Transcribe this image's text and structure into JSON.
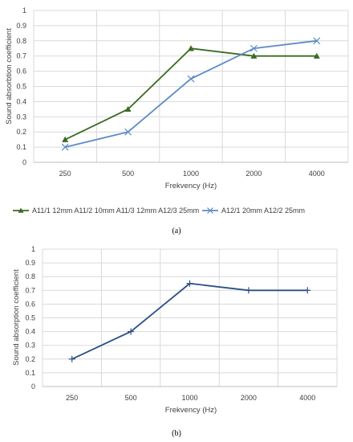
{
  "chart_data": [
    {
      "type": "line",
      "categories": [
        "250",
        "500",
        "1000",
        "2000",
        "4000"
      ],
      "series": [
        {
          "name": "A11/1 12mm A11/2 10mm A11/3 12mm A12/3 25mm",
          "values": [
            0.15,
            0.35,
            0.75,
            0.7,
            0.7
          ],
          "color": "#3a6b23",
          "marker": "triangle"
        },
        {
          "name": "A12/1 20mm A12/2 25mm",
          "values": [
            0.1,
            0.2,
            0.55,
            0.75,
            0.8
          ],
          "color": "#5b8bc8",
          "marker": "x"
        }
      ],
      "yticks": [
        "0",
        "0.1",
        "0.2",
        "0.3",
        "0.4",
        "0.5",
        "0.6",
        "0.7",
        "0.8",
        "0.9",
        "1"
      ],
      "ylim": [
        0,
        1
      ],
      "xlabel": "Frekvency (Hz)",
      "ylabel": "Sound absorbtion coefficient",
      "grid": true,
      "legend": "bottom",
      "caption": "(a)"
    },
    {
      "type": "line",
      "categories": [
        "250",
        "500",
        "1000",
        "2000",
        "4000"
      ],
      "series": [
        {
          "values": [
            0.2,
            0.4,
            0.75,
            0.7,
            0.7
          ],
          "color": "#2c4f86",
          "marker": "plus"
        }
      ],
      "yticks": [
        "0",
        "0.1",
        "0.2",
        "0.3",
        "0.4",
        "0.5",
        "0.6",
        "0.7",
        "0.8",
        "0.9",
        "1"
      ],
      "ylim": [
        0,
        1
      ],
      "xlabel": "Frekvency (Hz)",
      "ylabel": "Sound absorption coefficient",
      "grid": true,
      "legend": "none",
      "caption": "(b)"
    }
  ]
}
